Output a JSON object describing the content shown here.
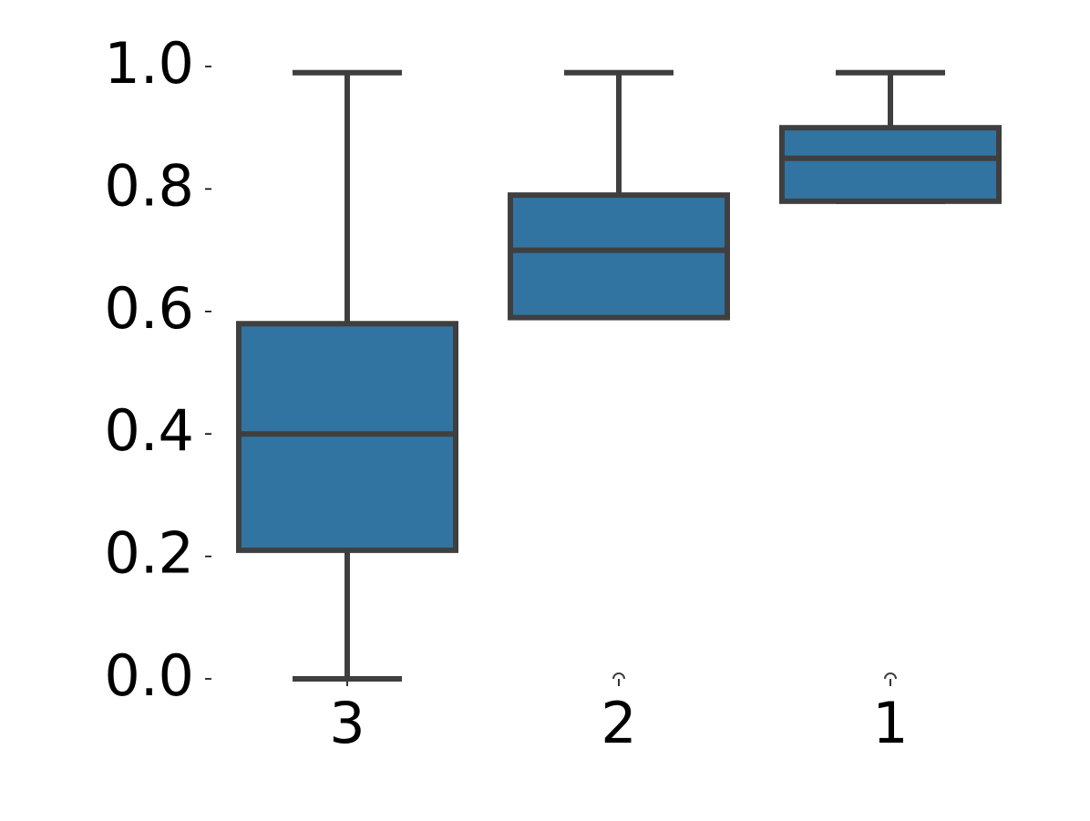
{
  "chart_data": {
    "type": "box",
    "title": "",
    "xlabel": "",
    "ylabel": "",
    "categories": [
      "3",
      "2",
      "1"
    ],
    "ylim": [
      0.0,
      1.0
    ],
    "yticks": [
      "0.0",
      "0.2",
      "0.4",
      "0.6",
      "0.8",
      "1.0"
    ],
    "grid": false,
    "boxes": [
      {
        "category": "3",
        "whisker_low": 0.0,
        "q1": 0.21,
        "median": 0.4,
        "q3": 0.58,
        "whisker_high": 0.99,
        "outliers": []
      },
      {
        "category": "2",
        "whisker_low": 0.59,
        "q1": 0.59,
        "median": 0.7,
        "q3": 0.79,
        "whisker_high": 0.99,
        "outliers": [
          0.0
        ]
      },
      {
        "category": "1",
        "whisker_low": 0.78,
        "q1": 0.78,
        "median": 0.85,
        "q3": 0.9,
        "whisker_high": 0.99,
        "outliers": [
          0.0
        ]
      }
    ],
    "colors": {
      "box_fill": "#3274a1",
      "line": "#3f3f3f",
      "text": "#000000",
      "background": "#ffffff"
    }
  }
}
